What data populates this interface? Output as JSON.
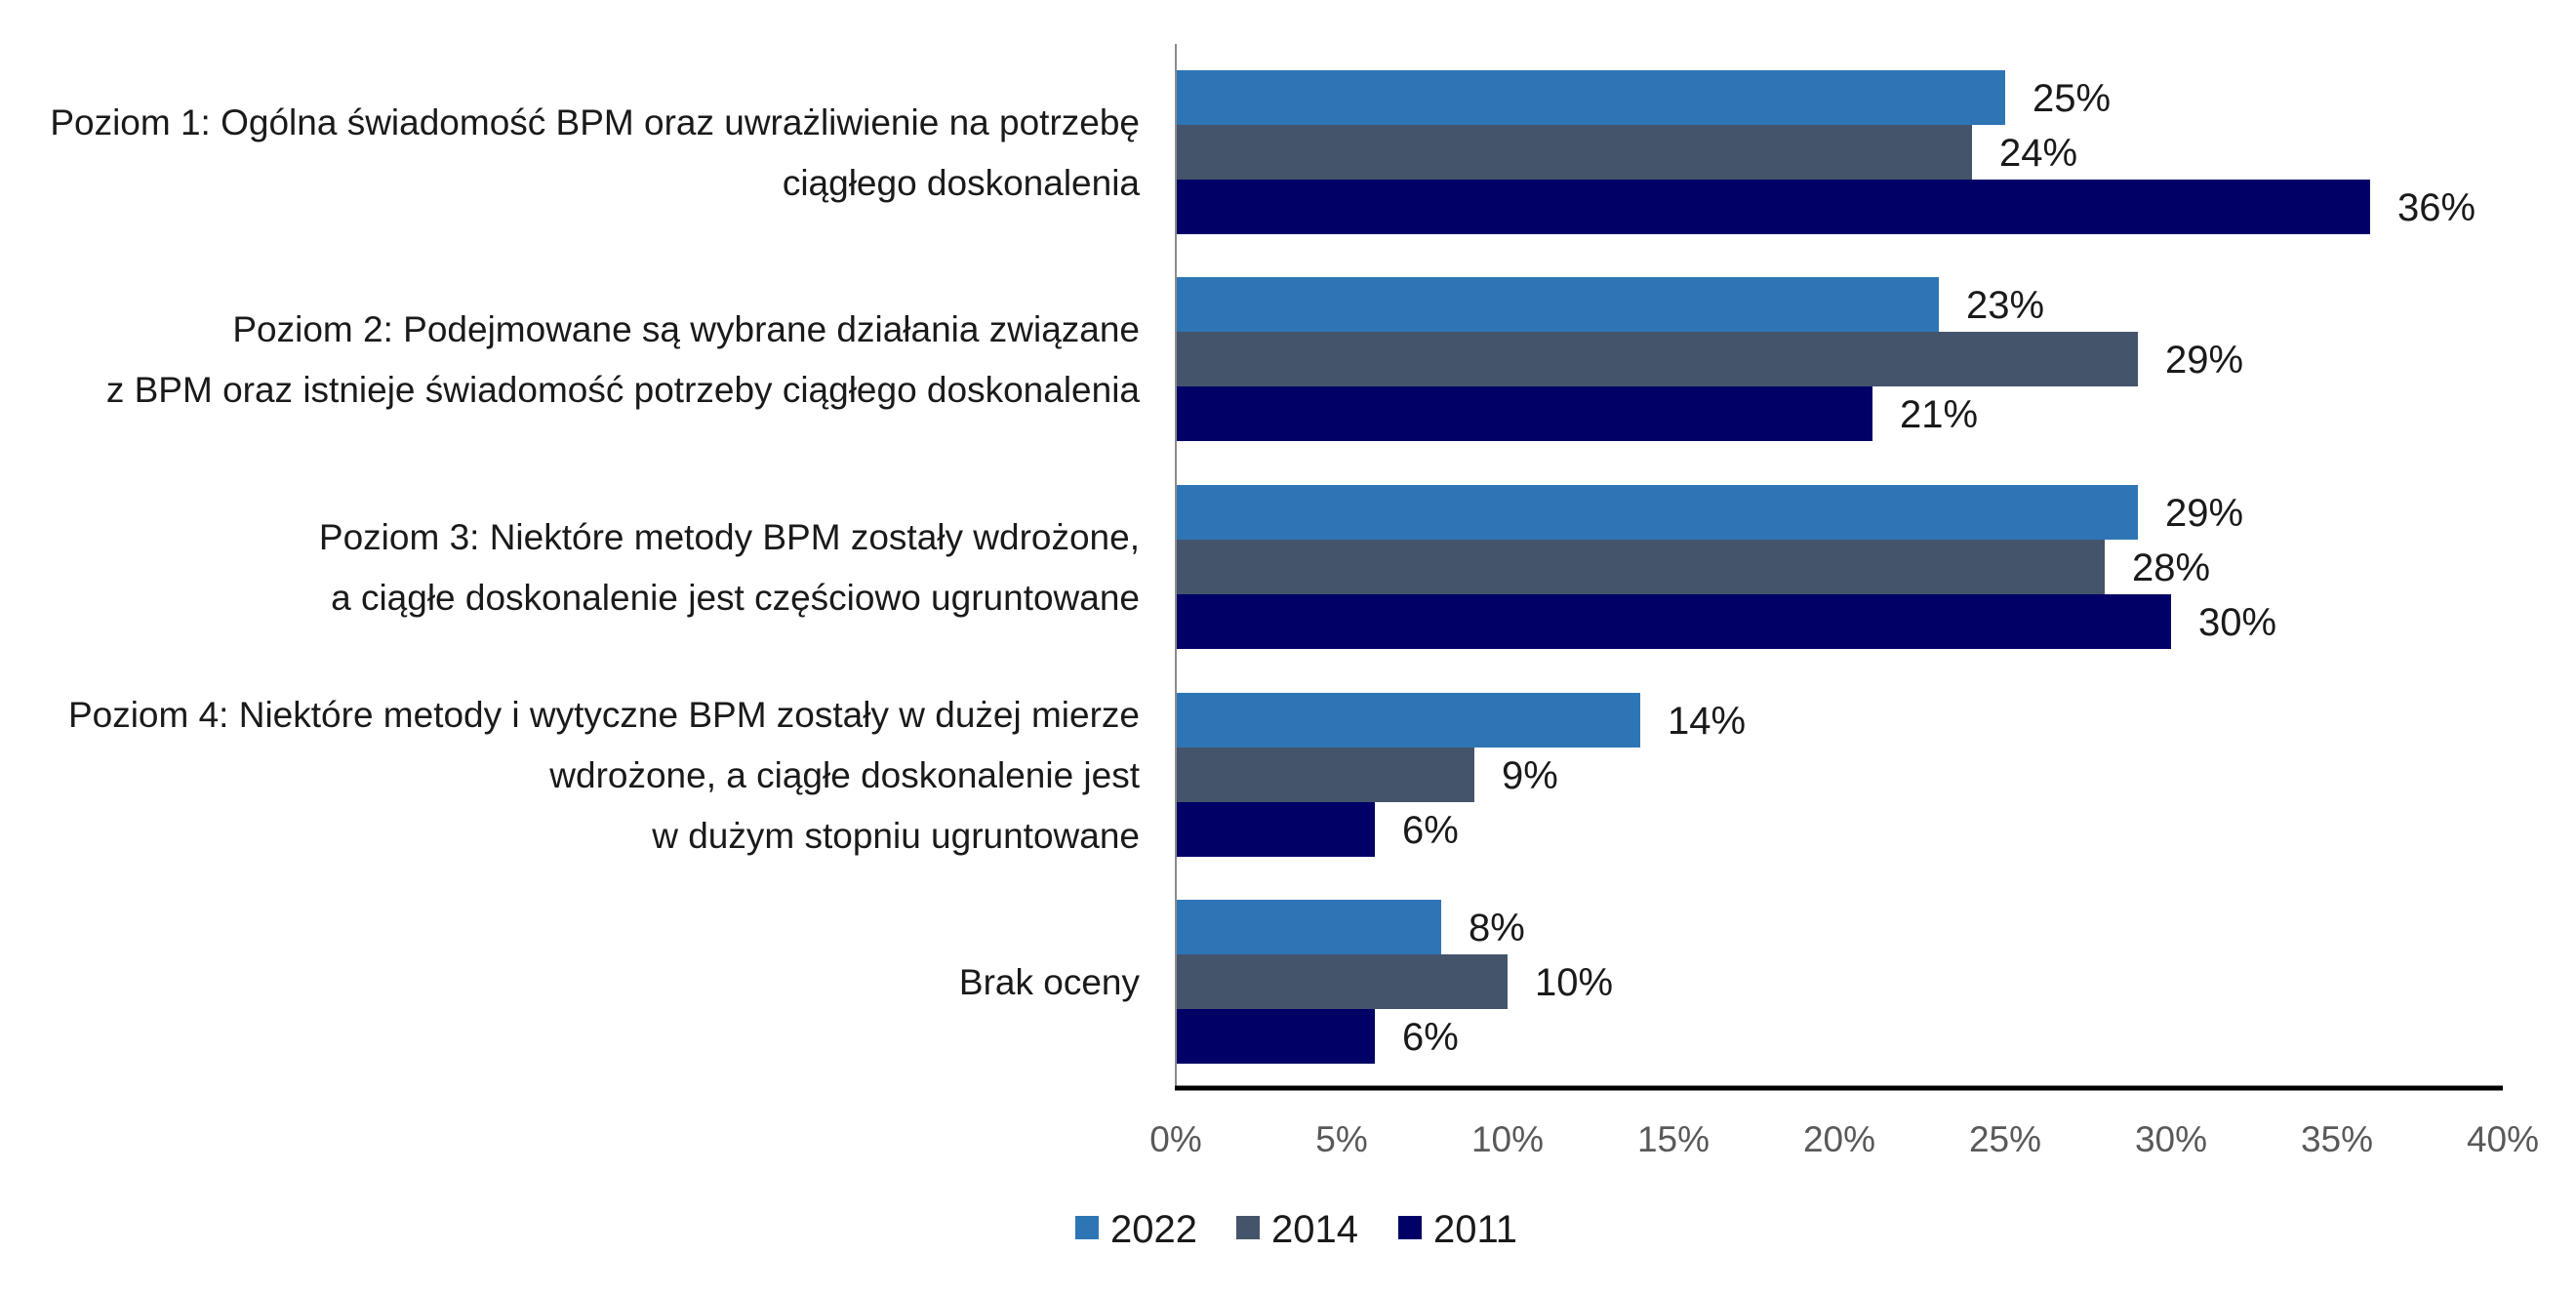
{
  "chart_data": {
    "type": "bar",
    "orientation": "horizontal",
    "title": "",
    "xlabel": "",
    "ylabel": "",
    "categories": [
      [
        "Poziom 1: Ogólna świadomość BPM oraz uwrażliwienie na potrzebę",
        "ciągłego doskonalenia"
      ],
      [
        "Poziom 2: Podejmowane są wybrane działania związane",
        "z BPM oraz istnieje świadomość potrzeby ciągłego doskonalenia"
      ],
      [
        "Poziom 3: Niektóre metody BPM zostały wdrożone,",
        "a ciągłe doskonalenie jest częściowo ugruntowane"
      ],
      [
        "Poziom 4: Niektóre metody i wytyczne BPM zostały w dużej mierze",
        "wdrożone, a ciągłe doskonalenie jest",
        "w dużym stopniu ugruntowane"
      ],
      [
        "Brak oceny"
      ]
    ],
    "series": [
      {
        "name": "2022",
        "color": "#2E75B6",
        "values": [
          25,
          23,
          29,
          14,
          8
        ],
        "labels": [
          "25%",
          "23%",
          "29%",
          "14%",
          "8%"
        ]
      },
      {
        "name": "2014",
        "color": "#44546A",
        "values": [
          24,
          29,
          28,
          9,
          10
        ],
        "labels": [
          "24%",
          "29%",
          "28%",
          "9%",
          "10%"
        ]
      },
      {
        "name": "2011",
        "color": "#000066",
        "values": [
          36,
          21,
          30,
          6,
          6
        ],
        "labels": [
          "36%",
          "21%",
          "30%",
          "6%",
          "6%"
        ]
      }
    ],
    "xlim": [
      0,
      40
    ],
    "xticks": [
      0,
      5,
      10,
      15,
      20,
      25,
      30,
      35,
      40
    ],
    "xtick_labels": [
      "0%",
      "5%",
      "10%",
      "15%",
      "20%",
      "25%",
      "30%",
      "35%",
      "40%"
    ],
    "grid": false,
    "legend_position": "bottom"
  }
}
